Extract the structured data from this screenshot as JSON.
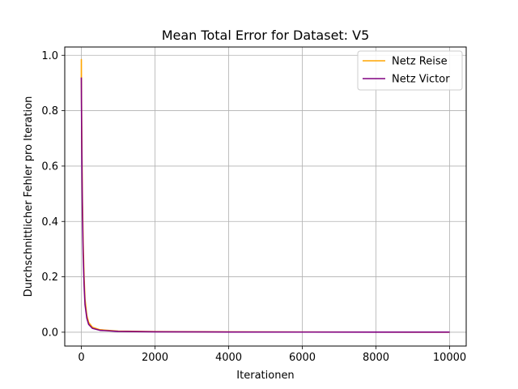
{
  "chart_data": {
    "type": "line",
    "title": "Mean Total Error for Dataset: V5",
    "xlabel": "Iterationen",
    "ylabel": "Durchschnittlicher Fehler pro Iteration",
    "xlim": [
      -450,
      10450
    ],
    "ylim": [
      -0.05,
      1.03
    ],
    "xticks": [
      0,
      2000,
      4000,
      6000,
      8000,
      10000
    ],
    "xtick_labels": [
      "0",
      "2000",
      "4000",
      "6000",
      "8000",
      "10000"
    ],
    "yticks": [
      0.0,
      0.2,
      0.4,
      0.6,
      0.8,
      1.0
    ],
    "ytick_labels": [
      "0.0",
      "0.2",
      "0.4",
      "0.6",
      "0.8",
      "1.0"
    ],
    "grid": true,
    "legend_position": "top-right",
    "series": [
      {
        "name": "Netz Reise",
        "color": "#ffa500",
        "x": [
          0,
          1,
          2,
          3,
          5,
          10,
          20,
          30,
          50,
          75,
          100,
          150,
          200,
          300,
          500,
          1000,
          2000,
          4000,
          6000,
          8000,
          10000
        ],
        "y": [
          0.92,
          0.985,
          0.94,
          0.9,
          0.85,
          0.75,
          0.6,
          0.48,
          0.32,
          0.2,
          0.12,
          0.06,
          0.035,
          0.018,
          0.009,
          0.004,
          0.002,
          0.001,
          0.0007,
          0.0005,
          0.0004
        ]
      },
      {
        "name": "Netz Victor",
        "color": "#800080",
        "x": [
          0,
          1,
          2,
          3,
          5,
          10,
          20,
          30,
          50,
          75,
          100,
          150,
          200,
          300,
          500,
          1000,
          2000,
          4000,
          6000,
          8000,
          10000
        ],
        "y": [
          0.92,
          0.9,
          0.87,
          0.84,
          0.8,
          0.7,
          0.55,
          0.43,
          0.28,
          0.17,
          0.1,
          0.05,
          0.028,
          0.014,
          0.007,
          0.003,
          0.0015,
          0.0008,
          0.0005,
          0.0004,
          0.0003
        ]
      }
    ]
  }
}
